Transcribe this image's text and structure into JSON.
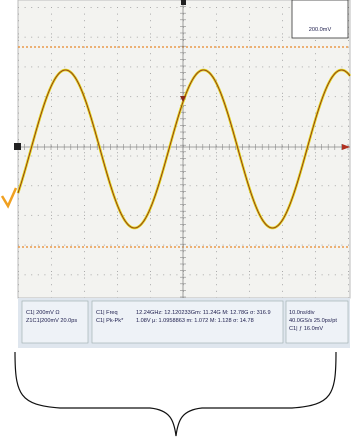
{
  "scale_box": {
    "label": "200.0mV"
  },
  "panels": [
    {
      "lines": [
        "C1|  200mV Ω",
        "Z1C1|200mV 20.0ps"
      ]
    },
    {
      "lines": [
        "C1| Freq",
        "C1| Pk-Pk*"
      ],
      "stats": [
        "12.24GHz: 12.120233Gm: 11.24G M: 12.78G σ: 316.9",
        "1.08V  μ: 1.0958863 m: 1.072 M: 1.128 σ: 14.78"
      ]
    },
    {
      "lines": [
        "10.0ns/div",
        "40.0GS/s   25.0ps/pt",
        "C1| ƒ 16.0mV"
      ]
    }
  ]
}
